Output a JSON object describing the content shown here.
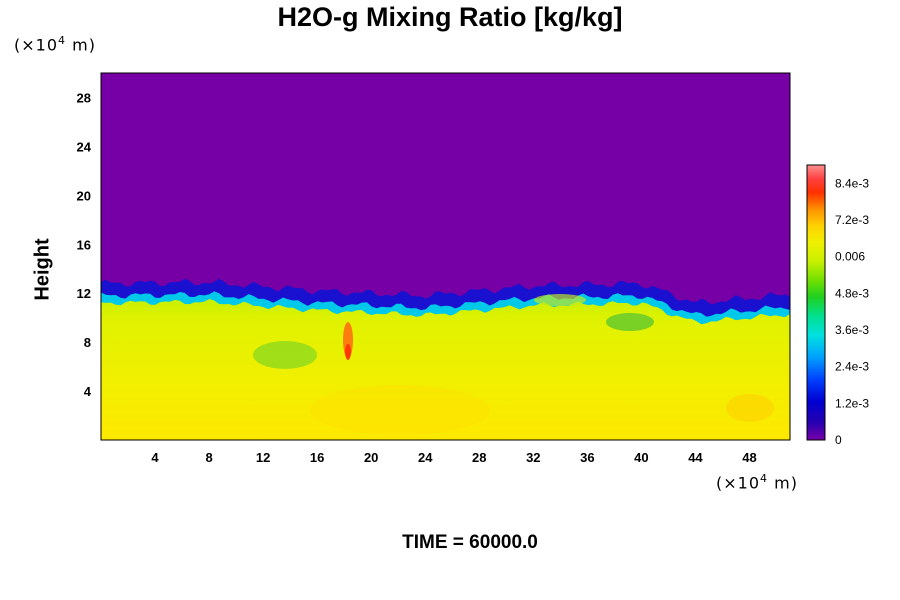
{
  "chart_data": {
    "type": "heatmap",
    "title": "H2O-g Mixing Ratio [kg/kg]",
    "ylabel": "Height",
    "xlabel": "",
    "x_unit_prefix": "(×10",
    "x_unit_exp": "4",
    "x_unit_suffix": " m)",
    "y_unit_prefix": "(×10",
    "y_unit_exp": "4",
    "y_unit_suffix": " m)",
    "xlim": [
      0,
      51
    ],
    "ylim": [
      0,
      30
    ],
    "xticks": [
      "4",
      "8",
      "12",
      "16",
      "20",
      "24",
      "28",
      "32",
      "36",
      "40",
      "44",
      "48"
    ],
    "yticks": [
      "4",
      "8",
      "12",
      "16",
      "20",
      "24",
      "28"
    ],
    "colorbar": {
      "range": [
        0,
        0.009
      ],
      "ticks": [
        {
          "value": 0,
          "label": "0"
        },
        {
          "value": 0.0012,
          "label": "1.2e-3"
        },
        {
          "value": 0.0024,
          "label": "2.4e-3"
        },
        {
          "value": 0.0036,
          "label": "3.6e-3"
        },
        {
          "value": 0.0048,
          "label": "4.8e-3"
        },
        {
          "value": 0.006,
          "label": "0.006"
        },
        {
          "value": 0.0072,
          "label": "7.2e-3"
        },
        {
          "value": 0.0084,
          "label": "8.4e-3"
        }
      ]
    },
    "field_summary": {
      "upper_layer_value": 0,
      "lower_layer_value": 0.0062,
      "interface_height_approx": [
        [
          0,
          12.8
        ],
        [
          8,
          12.9
        ],
        [
          16,
          12.2
        ],
        [
          24,
          11.8
        ],
        [
          32,
          12.6
        ],
        [
          40,
          12.8
        ],
        [
          44,
          11.2
        ],
        [
          51,
          11.9
        ]
      ]
    }
  },
  "footer": {
    "time_label": "TIME = 60000.0"
  },
  "colors": {
    "background": "#7700a6",
    "dry_purple": "#7600a5",
    "moist_yellow": "#e8f000"
  }
}
